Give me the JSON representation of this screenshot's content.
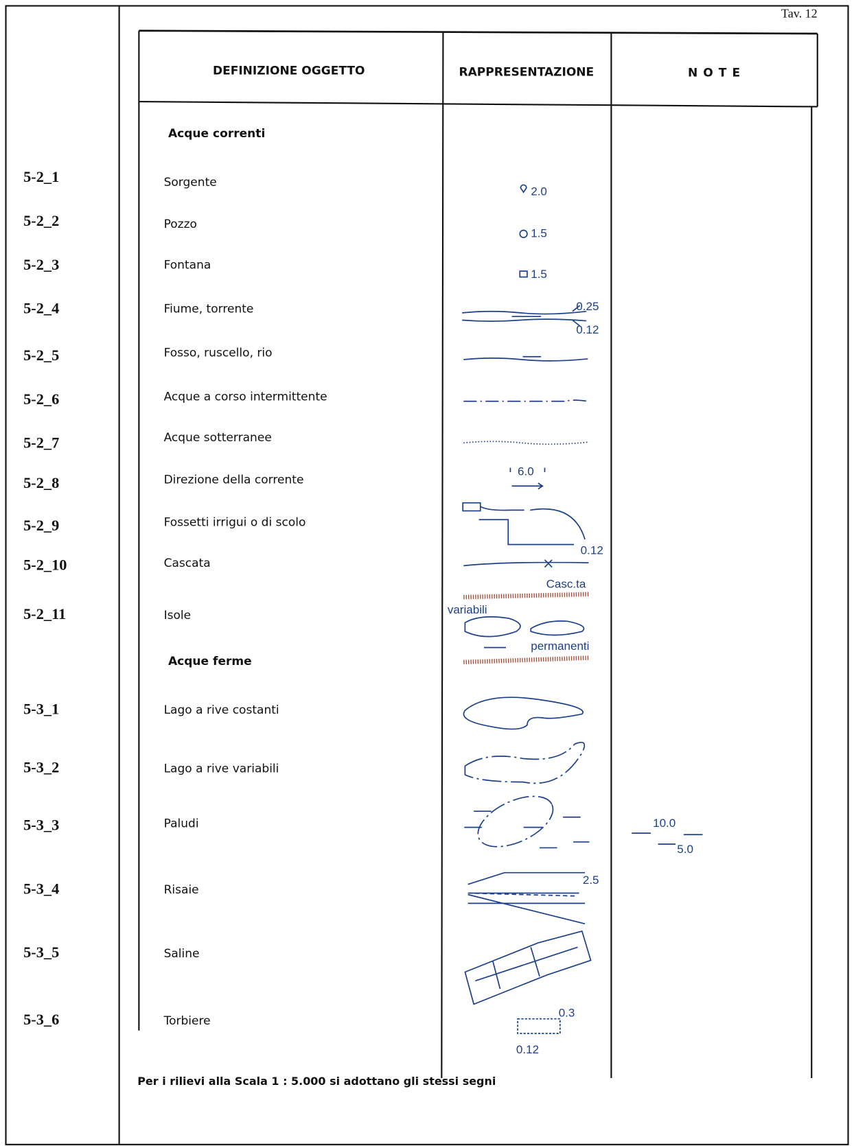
{
  "page_label": "Tav. 12",
  "table": {
    "headers": [
      "DEFINIZIONE OGGETTO",
      "RAPPRESENTAZIONE",
      "N O T E"
    ],
    "sections": [
      {
        "title": "Acque correnti",
        "rows": [
          {
            "code": "5-2_1",
            "label": "Sorgente",
            "symbol_text": [
              "2.0"
            ]
          },
          {
            "code": "5-2_2",
            "label": "Pozzo",
            "symbol_text": [
              "1.5"
            ]
          },
          {
            "code": "5-2_3",
            "label": "Fontana",
            "symbol_text": [
              "1.5"
            ]
          },
          {
            "code": "5-2_4",
            "label": "Fiume, torrente",
            "symbol_text": [
              "0.25",
              "0.12"
            ]
          },
          {
            "code": "5-2_5",
            "label": "Fosso, ruscello, rio"
          },
          {
            "code": "5-2_6",
            "label": "Acque a corso intermittente"
          },
          {
            "code": "5-2_7",
            "label": "Acque sotterranee"
          },
          {
            "code": "5-2_8",
            "label": "Direzione della corrente",
            "symbol_text": [
              "6.0"
            ]
          },
          {
            "code": "5-2_9",
            "label": "Fossetti irrigui o di scolo",
            "symbol_text": [
              "0.12"
            ]
          },
          {
            "code": "5-2_10",
            "label": "Cascata",
            "symbol_text": [
              "Casc.ta"
            ]
          },
          {
            "code": "5-2_11",
            "label": "Isole",
            "symbol_text": [
              "variabili",
              "permanenti"
            ]
          }
        ]
      },
      {
        "title": "Acque ferme",
        "rows": [
          {
            "code": "5-3_1",
            "label": "Lago a rive costanti"
          },
          {
            "code": "5-3_2",
            "label": "Lago a rive variabili"
          },
          {
            "code": "5-3_3",
            "label": "Paludi",
            "note_text": [
              "10.0",
              "5.0"
            ]
          },
          {
            "code": "5-3_4",
            "label": "Risaie",
            "symbol_text": [
              "2.5"
            ]
          },
          {
            "code": "5-3_5",
            "label": "Saline"
          },
          {
            "code": "5-3_6",
            "label": "Torbiere",
            "symbol_text": [
              "0.3",
              "0.12"
            ]
          }
        ]
      }
    ]
  },
  "footnote": "Per i rilievi alla Scala 1 : 5.000 si adottano gli stessi segni"
}
